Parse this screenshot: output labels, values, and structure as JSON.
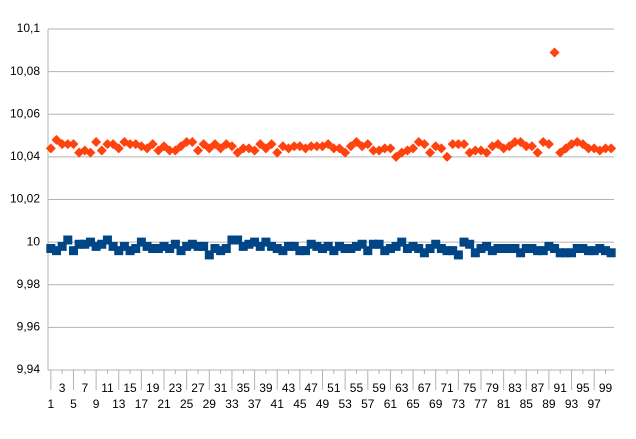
{
  "chart_data": {
    "type": "scatter",
    "categories": [
      1,
      null,
      3,
      null,
      5,
      null,
      7,
      null,
      9,
      null,
      11,
      null,
      13,
      null,
      15,
      null,
      17,
      null,
      19,
      null,
      21,
      null,
      23,
      null,
      25,
      null,
      27,
      null,
      29,
      null,
      31,
      null,
      33,
      null,
      35,
      null,
      37,
      null,
      39,
      null,
      41,
      null,
      43,
      null,
      45,
      null,
      47,
      null,
      49,
      null,
      51,
      null,
      53,
      null,
      55,
      null,
      57,
      null,
      59,
      null,
      61,
      null,
      63,
      null,
      65,
      null,
      67,
      null,
      69,
      null,
      71,
      null,
      73,
      null,
      75,
      null,
      77,
      null,
      79,
      null,
      81,
      null,
      83,
      null,
      85,
      null,
      87,
      null,
      89,
      null,
      91,
      null,
      93,
      null,
      95,
      null,
      97,
      null,
      99,
      null
    ],
    "series": [
      {
        "color": "#004586",
        "marker": "square",
        "values": [
          9.997,
          9.996,
          9.998,
          10.001,
          9.996,
          9.999,
          9.999,
          10,
          9.998,
          9.999,
          10.001,
          9.998,
          9.996,
          9.998,
          9.996,
          9.997,
          10,
          9.998,
          9.997,
          9.997,
          9.998,
          9.997,
          9.999,
          9.996,
          9.998,
          9.999,
          9.998,
          9.998,
          9.994,
          9.997,
          9.996,
          9.997,
          10.001,
          10.001,
          9.998,
          9.999,
          10,
          9.998,
          10,
          9.998,
          9.997,
          9.996,
          9.998,
          9.998,
          9.996,
          9.996,
          9.999,
          9.998,
          9.997,
          9.998,
          9.996,
          9.998,
          9.997,
          9.997,
          9.998,
          9.999,
          9.996,
          9.999,
          9.999,
          9.996,
          9.997,
          9.998,
          10,
          9.997,
          9.998,
          9.997,
          9.995,
          9.997,
          9.999,
          9.997,
          9.996,
          9.996,
          9.994,
          10,
          9.999,
          9.995,
          9.997,
          9.998,
          9.996,
          9.997,
          9.997,
          9.997,
          9.997,
          9.995,
          9.997,
          9.997,
          9.996,
          9.996,
          9.998,
          9.997,
          9.995,
          9.995,
          9.995,
          9.997,
          9.997,
          9.996,
          9.996,
          9.997,
          9.996,
          9.995
        ]
      },
      {
        "color": "#ff420e",
        "marker": "diamond",
        "values": [
          10.044,
          10.048,
          10.046,
          10.046,
          10.046,
          10.042,
          10.043,
          10.042,
          10.047,
          10.043,
          10.046,
          10.046,
          10.044,
          10.047,
          10.046,
          10.046,
          10.045,
          10.044,
          10.046,
          10.043,
          10.045,
          10.043,
          10.043,
          10.045,
          10.047,
          10.047,
          10.043,
          10.046,
          10.044,
          10.046,
          10.044,
          10.046,
          10.045,
          10.042,
          10.044,
          10.044,
          10.043,
          10.046,
          10.044,
          10.046,
          10.042,
          10.045,
          10.044,
          10.045,
          10.045,
          10.044,
          10.045,
          10.045,
          10.045,
          10.046,
          10.044,
          10.044,
          10.042,
          10.045,
          10.047,
          10.045,
          10.046,
          10.043,
          10.043,
          10.044,
          10.044,
          10.04,
          10.042,
          10.043,
          10.044,
          10.047,
          10.046,
          10.042,
          10.045,
          10.044,
          10.04,
          10.046,
          10.046,
          10.046,
          10.042,
          10.043,
          10.043,
          10.042,
          10.045,
          10.046,
          10.044,
          10.045,
          10.047,
          10.047,
          10.045,
          10.045,
          10.042,
          10.047,
          10.046,
          10.089,
          10.042,
          10.044,
          10.046,
          10.047,
          10.046,
          10.044,
          10.044,
          10.043,
          10.044,
          10.044
        ]
      }
    ],
    "ylim": [
      9.94,
      10.1
    ],
    "yticks": [
      {
        "value": 9.94,
        "label": "9,94"
      },
      {
        "value": 9.96,
        "label": "9,96"
      },
      {
        "value": 9.98,
        "label": "9,98"
      },
      {
        "value": 10,
        "label": "10"
      },
      {
        "value": 10.02,
        "label": "10,02"
      },
      {
        "value": 10.04,
        "label": "10,04"
      },
      {
        "value": 10.06,
        "label": "10,06"
      },
      {
        "value": 10.08,
        "label": "10,08"
      },
      {
        "value": 10.1,
        "label": "10,1"
      }
    ],
    "grid": true
  }
}
